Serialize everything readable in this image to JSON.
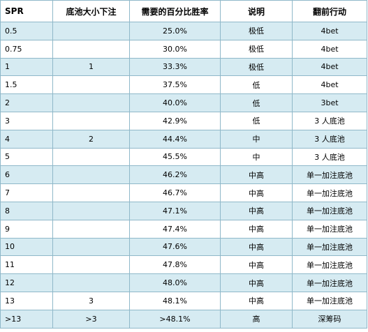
{
  "headers": [
    "SPR",
    "底池大小下注",
    "需要的百分比胜率",
    "说明",
    "翻前行动"
  ],
  "rows": [
    [
      "0.5",
      "",
      "25.0%",
      "极低",
      "4bet"
    ],
    [
      "0.75",
      "",
      "30.0%",
      "极低",
      "4bet"
    ],
    [
      "1",
      "1",
      "33.3%",
      "极低",
      "4bet"
    ],
    [
      "1.5",
      "",
      "37.5%",
      "低",
      "4bet"
    ],
    [
      "2",
      "",
      "40.0%",
      "低",
      "3bet"
    ],
    [
      "3",
      "",
      "42.9%",
      "低",
      "3 人底池"
    ],
    [
      "4",
      "2",
      "44.4%",
      "中",
      "3 人底池"
    ],
    [
      "5",
      "",
      "45.5%",
      "中",
      "3 人底池"
    ],
    [
      "6",
      "",
      "46.2%",
      "中高",
      "单一加注底池"
    ],
    [
      "7",
      "",
      "46.7%",
      "中高",
      "单一加注底池"
    ],
    [
      "8",
      "",
      "47.1%",
      "中高",
      "单一加注底池"
    ],
    [
      "9",
      "",
      "47.4%",
      "中高",
      "单一加注底池"
    ],
    [
      "10",
      "",
      "47.6%",
      "中高",
      "单一加注底池"
    ],
    [
      "11",
      "",
      "47.8%",
      "中高",
      "单一加注底池"
    ],
    [
      "12",
      "",
      "48.0%",
      "中高",
      "单一加注底池"
    ],
    [
      "13",
      "3",
      "48.1%",
      "中高",
      "单一加注底池"
    ],
    [
      ">13",
      ">3",
      ">48.1%",
      "高",
      "深筹码"
    ]
  ]
}
